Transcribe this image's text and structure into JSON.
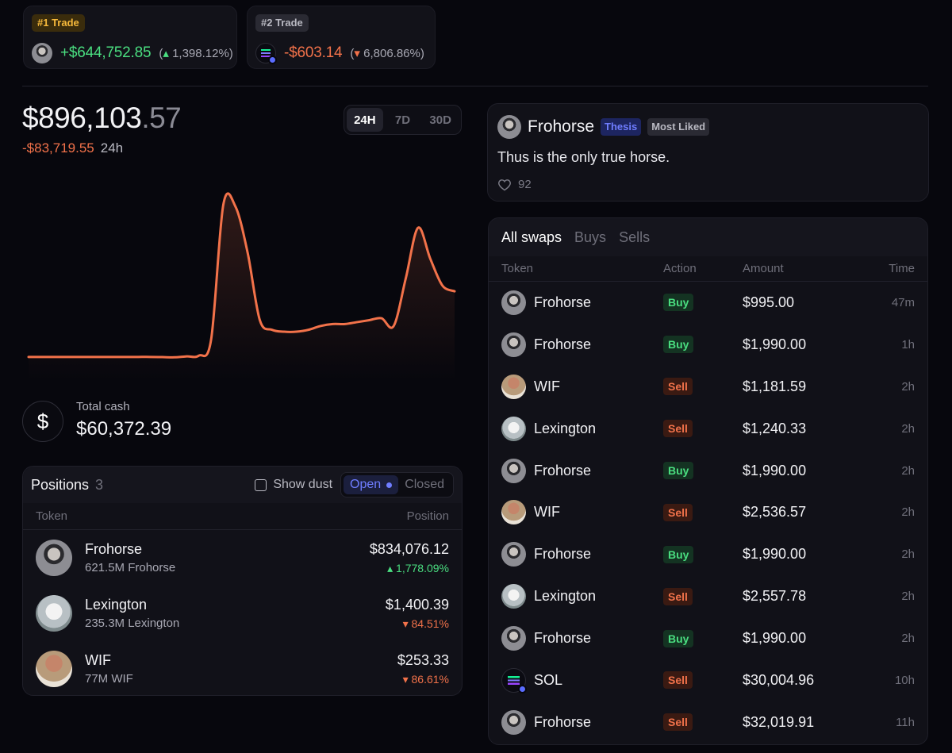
{
  "top_trades": [
    {
      "badge": "#1 Trade",
      "value": "+$644,752.85",
      "pct": "1,398.12%",
      "direction": "up",
      "avatar": "man"
    },
    {
      "badge": "#2 Trade",
      "value": "-$603.14",
      "pct": "6,806.86%",
      "direction": "down",
      "avatar": "sol"
    }
  ],
  "portfolio": {
    "balance_main": "$896,103",
    "balance_cents": ".57",
    "change": "-$83,719.55",
    "period": "24h",
    "ranges": [
      "24H",
      "7D",
      "30D"
    ],
    "active_range": "24H"
  },
  "chart_data": {
    "type": "line",
    "color": "#f2724a",
    "values": [
      0.9,
      0.9,
      0.9,
      0.9,
      0.9,
      0.9,
      0.9,
      0.9,
      0.9,
      0.9,
      0.9,
      0.8,
      0.7,
      1.2,
      1.6,
      10,
      80,
      79,
      55,
      20,
      15,
      14,
      14,
      15,
      17,
      18,
      18,
      19,
      20,
      21,
      17,
      42,
      68,
      52,
      38,
      35
    ],
    "xlabel": "",
    "ylabel": ""
  },
  "cash": {
    "label": "Total cash",
    "value": "$60,372.39",
    "icon": "dollar-icon"
  },
  "positions": {
    "title": "Positions",
    "count": "3",
    "show_dust": "Show dust",
    "open": "Open",
    "closed": "Closed",
    "col_token": "Token",
    "col_position": "Position",
    "rows": [
      {
        "name": "Frohorse",
        "sub": "621.5M Frohorse",
        "value": "$834,076.12",
        "pct": "▴ 1,778.09%",
        "dir": "up",
        "avatar": "man"
      },
      {
        "name": "Lexington",
        "sub": "235.3M Lexington",
        "value": "$1,400.39",
        "pct": "▾ 84.51%",
        "dir": "down",
        "avatar": "horse"
      },
      {
        "name": "WIF",
        "sub": "77M WIF",
        "value": "$253.33",
        "pct": "▾ 86.61%",
        "dir": "down",
        "avatar": "wif"
      }
    ]
  },
  "thesis": {
    "name": "Frohorse",
    "tag1": "Thesis",
    "tag2": "Most Liked",
    "text": "Thus is the only true horse.",
    "likes": "92"
  },
  "swaps": {
    "tabs": [
      "All swaps",
      "Buys",
      "Sells"
    ],
    "active_tab": "All swaps",
    "columns": {
      "token": "Token",
      "action": "Action",
      "amount": "Amount",
      "time": "Time"
    },
    "rows": [
      {
        "token": "Frohorse",
        "action": "Buy",
        "amount": "$995.00",
        "time": "47m",
        "avatar": "man"
      },
      {
        "token": "Frohorse",
        "action": "Buy",
        "amount": "$1,990.00",
        "time": "1h",
        "avatar": "man"
      },
      {
        "token": "WIF",
        "action": "Sell",
        "amount": "$1,181.59",
        "time": "2h",
        "avatar": "wif"
      },
      {
        "token": "Lexington",
        "action": "Sell",
        "amount": "$1,240.33",
        "time": "2h",
        "avatar": "horse"
      },
      {
        "token": "Frohorse",
        "action": "Buy",
        "amount": "$1,990.00",
        "time": "2h",
        "avatar": "man"
      },
      {
        "token": "WIF",
        "action": "Sell",
        "amount": "$2,536.57",
        "time": "2h",
        "avatar": "wif"
      },
      {
        "token": "Frohorse",
        "action": "Buy",
        "amount": "$1,990.00",
        "time": "2h",
        "avatar": "man"
      },
      {
        "token": "Lexington",
        "action": "Sell",
        "amount": "$2,557.78",
        "time": "2h",
        "avatar": "horse"
      },
      {
        "token": "Frohorse",
        "action": "Buy",
        "amount": "$1,990.00",
        "time": "2h",
        "avatar": "man"
      },
      {
        "token": "SOL",
        "action": "Sell",
        "amount": "$30,004.96",
        "time": "10h",
        "avatar": "sol"
      },
      {
        "token": "Frohorse",
        "action": "Sell",
        "amount": "$32,019.91",
        "time": "11h",
        "avatar": "man"
      }
    ]
  }
}
